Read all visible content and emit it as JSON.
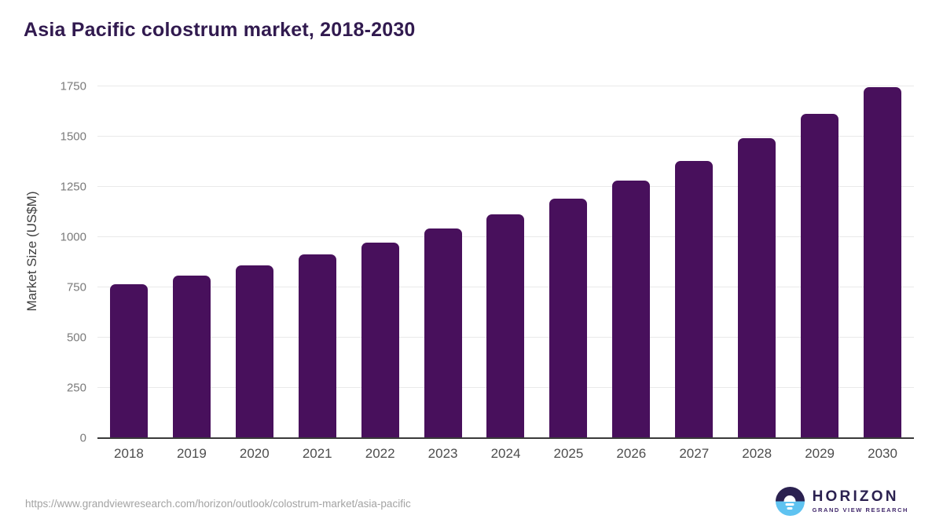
{
  "title": "Asia Pacific colostrum market, 2018-2030",
  "chart_data": {
    "type": "bar",
    "title": "Asia Pacific colostrum market, 2018-2030",
    "categories": [
      "2018",
      "2019",
      "2020",
      "2021",
      "2022",
      "2023",
      "2024",
      "2025",
      "2026",
      "2027",
      "2028",
      "2029",
      "2030"
    ],
    "values": [
      766,
      809,
      859,
      914,
      973,
      1042,
      1115,
      1193,
      1282,
      1380,
      1492,
      1615,
      1748
    ],
    "xlabel": "",
    "ylabel": "Market Size (US$M)",
    "ylim": [
      0,
      1750
    ],
    "ytick_step": 250,
    "yticks": [
      0,
      250,
      500,
      750,
      1000,
      1250,
      1500,
      1750
    ],
    "grid": true,
    "legend": false,
    "bar_color": "#48105c"
  },
  "axis": {
    "ylabel": "Market Size (US$M)"
  },
  "footer": {
    "source_url": "https://www.grandviewresearch.com/horizon/outlook/colostrum-market/asia-pacific"
  },
  "logo": {
    "brand": "HORIZON",
    "subtitle": "GRAND VIEW RESEARCH"
  },
  "colors": {
    "bar": "#48105c",
    "title": "#311a4f",
    "grid": "#e9e9e9",
    "axis_line": "#3a3a3a",
    "y_tick_label": "#7a7a7a",
    "x_tick_label": "#4d4d4d",
    "url_text": "#a3a3a3",
    "logo_dark": "#2b2150",
    "logo_blue": "#5fc3f1"
  }
}
